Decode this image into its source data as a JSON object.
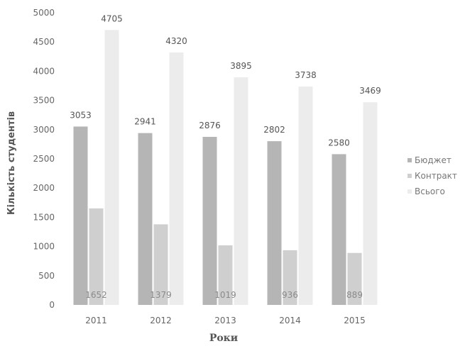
{
  "chart_data": {
    "type": "bar",
    "title": "",
    "xlabel": "Роки",
    "ylabel": "Кількість студентів",
    "categories": [
      "2011",
      "2012",
      "2013",
      "2014",
      "2015"
    ],
    "series": [
      {
        "name": "Бюджет",
        "values": [
          3053,
          2941,
          2876,
          2802,
          2580
        ],
        "color": "#b5b5b5",
        "label_position": "outside-end"
      },
      {
        "name": "Контракт",
        "values": [
          1652,
          1379,
          1019,
          936,
          889
        ],
        "color": "#cfcfcf",
        "label_position": "inside-base"
      },
      {
        "name": "Всього",
        "values": [
          4705,
          4320,
          3895,
          3738,
          3469
        ],
        "color": "#ececec",
        "label_position": "outside-end"
      }
    ],
    "ylim": [
      0,
      5000
    ],
    "yticks": [
      0,
      500,
      1000,
      1500,
      2000,
      2500,
      3000,
      3500,
      4000,
      4500,
      5000
    ],
    "grid": false,
    "legend": "right"
  }
}
